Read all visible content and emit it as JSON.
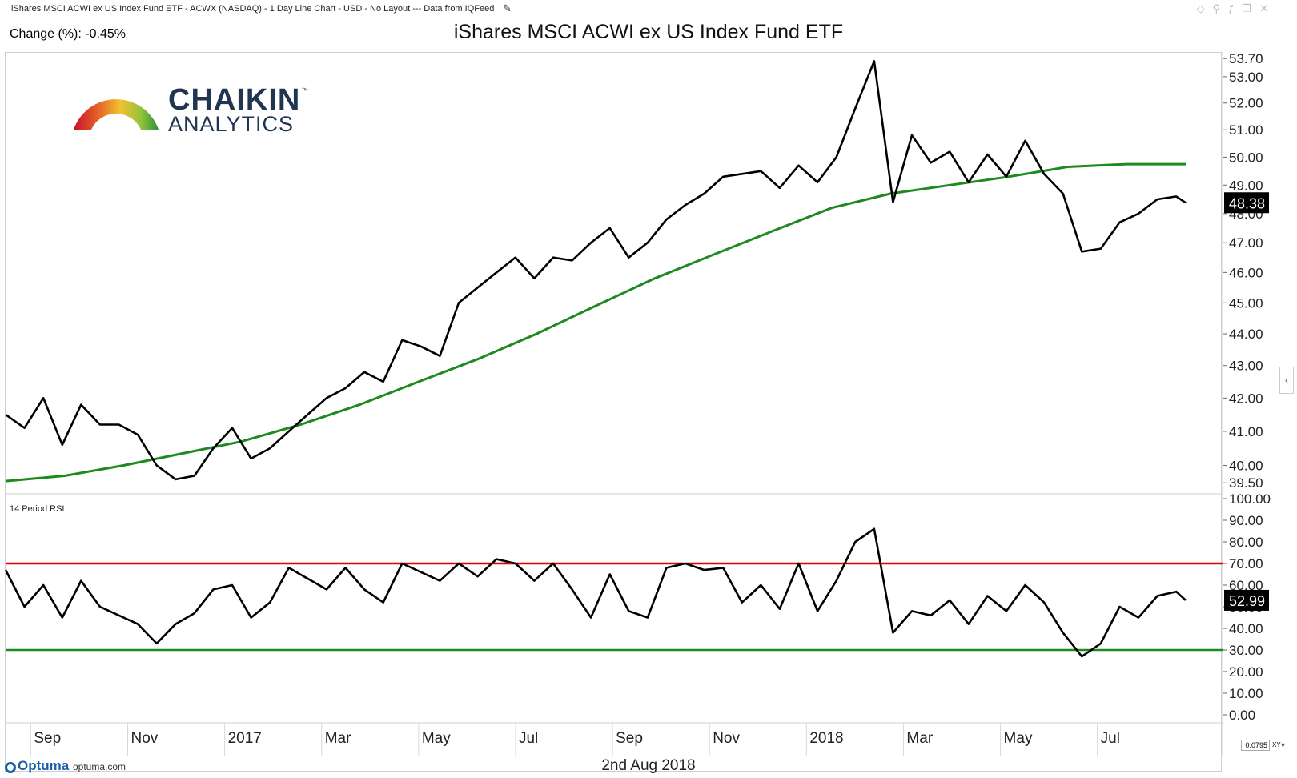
{
  "header": {
    "chart_info": "iShares MSCI ACWI ex US Index Fund ETF - ACWX (NASDAQ) - 1 Day Line Chart - USD - No Layout --- Data from IQFeed",
    "change_text": "Change (%): -0.45%",
    "title": "iShares MSCI ACWI ex US Index Fund ETF"
  },
  "logo": {
    "word1": "CHAIKIN",
    "tm": "™",
    "word2": "ANALYTICS"
  },
  "footer": {
    "brand": "Optuma",
    "url": "optuma.com",
    "date": "2nd Aug 2018",
    "zoom": "0.0795",
    "xy": "XY"
  },
  "colors": {
    "price": "#000000",
    "ma": "#1d8a1d",
    "rsi_upper": "#e00000",
    "rsi_lower": "#1d8a1d",
    "badge_bg": "#000000",
    "badge_text": "#ffffff"
  },
  "chart_data": [
    {
      "type": "line",
      "panel": "price",
      "ylim": [
        39.3,
        53.8
      ],
      "scale": "log",
      "y_ticks": [
        "53.70",
        "53.00",
        "52.00",
        "51.00",
        "50.00",
        "49.00",
        "48.00",
        "47.00",
        "46.00",
        "45.00",
        "44.00",
        "43.00",
        "42.00",
        "41.00",
        "40.00",
        "39.50"
      ],
      "last_value_label": "48.38",
      "x_ticks": [
        "Sep",
        "Nov",
        "2017",
        "Mar",
        "May",
        "Jul",
        "Sep",
        "Nov",
        "2018",
        "Mar",
        "May",
        "Jul"
      ],
      "series": [
        {
          "name": "",
          "role": "price",
          "x": [
            0,
            8,
            16,
            24,
            32,
            40,
            48,
            56,
            64,
            72,
            80,
            88,
            96,
            104,
            112,
            120,
            128,
            136,
            144,
            152,
            160,
            168,
            176,
            184,
            192,
            200,
            208,
            216,
            224,
            232,
            240,
            248,
            256,
            264,
            272,
            280,
            288,
            296,
            304,
            312,
            320,
            328,
            336,
            344,
            352,
            360,
            368,
            376,
            384,
            392,
            400,
            408,
            416,
            424,
            432,
            440,
            448,
            456,
            464,
            472,
            480,
            488,
            496,
            500
          ],
          "y": [
            41.5,
            41.1,
            42.0,
            40.6,
            41.8,
            41.2,
            41.2,
            40.9,
            40.0,
            39.6,
            39.7,
            40.5,
            41.1,
            40.2,
            40.5,
            41.0,
            41.5,
            42.0,
            42.3,
            42.8,
            42.5,
            43.8,
            43.6,
            43.3,
            45.0,
            45.5,
            46.0,
            46.5,
            45.8,
            46.5,
            46.4,
            47.0,
            47.5,
            46.5,
            47.0,
            47.8,
            48.3,
            48.7,
            49.3,
            49.4,
            49.5,
            48.9,
            49.7,
            49.1,
            50.0,
            51.8,
            53.6,
            48.4,
            50.8,
            49.8,
            50.2,
            49.1,
            50.1,
            49.3,
            50.6,
            49.4,
            48.7,
            46.7,
            46.8,
            47.7,
            48.0,
            48.5,
            48.6,
            48.38
          ]
        },
        {
          "name": "",
          "role": "moving_average",
          "x": [
            0,
            25,
            50,
            75,
            100,
            125,
            150,
            175,
            200,
            225,
            250,
            275,
            300,
            325,
            350,
            375,
            400,
            425,
            450,
            475,
            500
          ],
          "y": [
            39.55,
            39.7,
            40.0,
            40.35,
            40.7,
            41.2,
            41.8,
            42.5,
            43.2,
            44.0,
            44.9,
            45.8,
            46.6,
            47.4,
            48.2,
            48.7,
            49.0,
            49.3,
            49.65,
            49.75,
            49.75
          ]
        }
      ]
    },
    {
      "type": "line",
      "panel": "rsi",
      "title": "14 Period RSI",
      "ylim": [
        0,
        100
      ],
      "y_ticks": [
        "100.00",
        "90.00",
        "80.00",
        "70.00",
        "60.00",
        "50.00",
        "40.00",
        "30.00",
        "20.00",
        "10.00",
        "0.00"
      ],
      "last_value_label": "52.99",
      "reference_lines": [
        70,
        30
      ],
      "series": [
        {
          "name": "",
          "role": "rsi",
          "x": [
            0,
            8,
            16,
            24,
            32,
            40,
            48,
            56,
            64,
            72,
            80,
            88,
            96,
            104,
            112,
            120,
            128,
            136,
            144,
            152,
            160,
            168,
            176,
            184,
            192,
            200,
            208,
            216,
            224,
            232,
            240,
            248,
            256,
            264,
            272,
            280,
            288,
            296,
            304,
            312,
            320,
            328,
            336,
            344,
            352,
            360,
            368,
            376,
            384,
            392,
            400,
            408,
            416,
            424,
            432,
            440,
            448,
            456,
            464,
            472,
            480,
            488,
            496,
            500
          ],
          "y": [
            67,
            50,
            60,
            45,
            62,
            50,
            46,
            42,
            33,
            42,
            47,
            58,
            60,
            45,
            52,
            68,
            63,
            58,
            68,
            58,
            52,
            70,
            66,
            62,
            70,
            64,
            72,
            70,
            62,
            70,
            58,
            45,
            65,
            48,
            45,
            68,
            70,
            67,
            68,
            52,
            60,
            49,
            70,
            48,
            62,
            80,
            86,
            38,
            48,
            46,
            53,
            42,
            55,
            48,
            60,
            52,
            38,
            27,
            33,
            50,
            45,
            55,
            57,
            52.99
          ]
        }
      ]
    }
  ]
}
